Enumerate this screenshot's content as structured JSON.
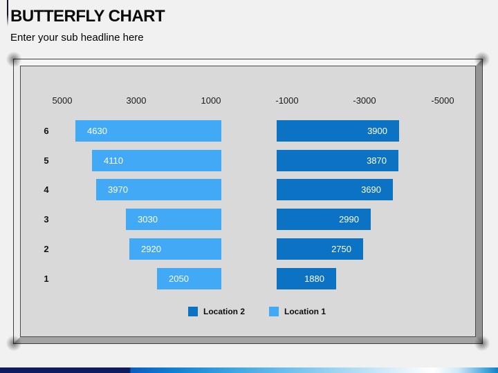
{
  "header": {
    "title": "BUTTERFLY CHART",
    "subtitle": "Enter your sub headline here"
  },
  "chart_data": {
    "type": "bar",
    "variant": "butterfly",
    "title": "",
    "categories": [
      "6",
      "5",
      "4",
      "3",
      "2",
      "1"
    ],
    "series": [
      {
        "name": "Location 1",
        "side": "left",
        "color": "#41a9f5",
        "values": [
          4630,
          4110,
          3970,
          3030,
          2920,
          2050
        ]
      },
      {
        "name": "Location 2",
        "side": "right",
        "color": "#0b72c4",
        "values": [
          3900,
          3870,
          3690,
          2990,
          2750,
          1880
        ]
      }
    ],
    "axis_ticks": [
      "5000",
      "3000",
      "1000",
      "-1000",
      "-3000",
      "-5000"
    ],
    "axis_max": 5000,
    "grid": false,
    "legend_position": "bottom",
    "legend": [
      {
        "label": "Location 2",
        "color": "#0b72c4"
      },
      {
        "label": "Location 1",
        "color": "#41a9f5"
      }
    ]
  },
  "colors": {
    "bar_light": "#41a9f5",
    "bar_dark": "#0b72c4",
    "chart_background": "#d9d9d9",
    "slide_background": "#f1f1f1",
    "bottom_bar_navy": "#0e1c5e",
    "bottom_bar_blue": "#0b82cc",
    "value_label_text": "#ffffff"
  }
}
